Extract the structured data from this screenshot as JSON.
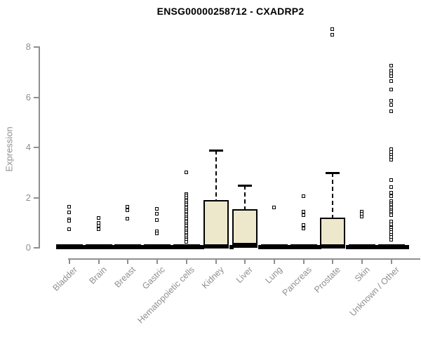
{
  "chart_data": {
    "type": "boxplot",
    "title": "ENSG00000258712 - CXADRP2",
    "ylabel": "Expression",
    "xlabel": "",
    "yticks": [
      0,
      2,
      4,
      6,
      8
    ],
    "ylim": [
      0,
      8.8
    ],
    "grid": false,
    "legend": "none",
    "colors": {
      "box_fill": "#ede7cb",
      "box_border": "#000000",
      "median": "#000000",
      "outlier_fill": "#ffffff",
      "axis": "#8f8f8f",
      "tick_label": "#8f8f8f",
      "title": "#000000"
    },
    "categories": [
      "Bladder",
      "Brain",
      "Breast",
      "Gastric",
      "Hematopoietic cells",
      "Kidney",
      "Liver",
      "Lung",
      "Pancreas",
      "Prostate",
      "Skin",
      "Unknown / Other"
    ],
    "boxes": [
      {
        "category": "Bladder",
        "q1": 0,
        "median": 0,
        "q3": 0,
        "whisker_low": 0,
        "whisker_high": 0,
        "outliers": [
          1.65,
          1.4,
          1.12,
          1.08,
          0.75
        ]
      },
      {
        "category": "Brain",
        "q1": 0,
        "median": 0,
        "q3": 0,
        "whisker_low": 0,
        "whisker_high": 0,
        "outliers": [
          1.2,
          1.0,
          0.88,
          0.75
        ]
      },
      {
        "category": "Breast",
        "q1": 0,
        "median": 0,
        "q3": 0,
        "whisker_low": 0,
        "whisker_high": 0,
        "outliers": [
          1.65,
          1.5,
          1.15
        ]
      },
      {
        "category": "Gastric",
        "q1": 0,
        "median": 0,
        "q3": 0,
        "whisker_low": 0,
        "whisker_high": 0,
        "outliers": [
          1.55,
          1.35,
          1.1,
          0.65,
          0.58
        ]
      },
      {
        "category": "Hematopoietic cells",
        "q1": 0,
        "median": 0,
        "q3": 0,
        "whisker_low": 0,
        "whisker_high": 0,
        "outliers": [
          3.0,
          2.15,
          2.08,
          2.0,
          1.93,
          1.86,
          1.79,
          1.72,
          1.65,
          1.58,
          1.51,
          1.44,
          1.37,
          1.3,
          1.23,
          1.16,
          1.09,
          1.02,
          0.95,
          0.88,
          0.81,
          0.74,
          0.67,
          0.6,
          0.53,
          0.46,
          0.39,
          0.32,
          0.25
        ]
      },
      {
        "category": "Kidney",
        "q1": 0,
        "median": 0.05,
        "q3": 1.9,
        "whisker_low": 0,
        "whisker_high": 3.9,
        "outliers": []
      },
      {
        "category": "Liver",
        "q1": 0,
        "median": 0.1,
        "q3": 1.55,
        "whisker_low": 0,
        "whisker_high": 2.5,
        "outliers": []
      },
      {
        "category": "Lung",
        "q1": 0,
        "median": 0,
        "q3": 0,
        "whisker_low": 0,
        "whisker_high": 0,
        "outliers": [
          1.6
        ]
      },
      {
        "category": "Pancreas",
        "q1": 0,
        "median": 0,
        "q3": 0,
        "whisker_low": 0,
        "whisker_high": 0,
        "outliers": [
          2.05,
          1.45,
          1.3,
          0.9,
          0.76
        ]
      },
      {
        "category": "Prostate",
        "q1": 0,
        "median": 0.05,
        "q3": 1.2,
        "whisker_low": 0,
        "whisker_high": 3.0,
        "outliers": [
          8.7,
          8.5
        ]
      },
      {
        "category": "Skin",
        "q1": 0,
        "median": 0,
        "q3": 0,
        "whisker_low": 0,
        "whisker_high": 0,
        "outliers": [
          1.45,
          1.35,
          1.25
        ]
      },
      {
        "category": "Unknown / Other",
        "q1": 0,
        "median": 0,
        "q3": 0,
        "whisker_low": 0,
        "whisker_high": 0,
        "outliers": [
          7.25,
          7.05,
          6.95,
          6.85,
          6.65,
          6.3,
          5.85,
          5.7,
          5.45,
          3.92,
          3.82,
          3.72,
          3.62,
          3.5,
          2.7,
          2.42,
          2.2,
          2.05,
          1.85,
          1.78,
          1.71,
          1.64,
          1.57,
          1.5,
          1.43,
          1.36,
          1.29,
          1.05,
          0.95,
          0.8,
          0.72,
          0.62,
          0.52,
          0.42,
          0.32
        ]
      }
    ]
  }
}
